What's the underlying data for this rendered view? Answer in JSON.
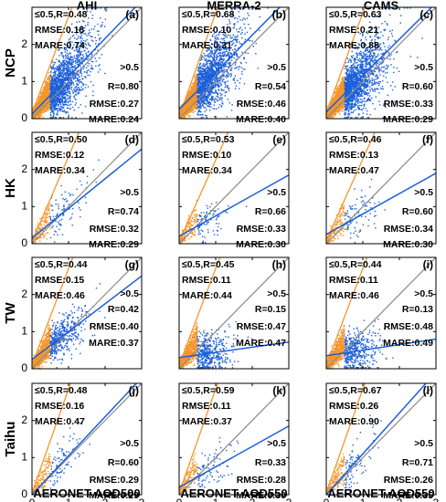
{
  "figure": {
    "column_titles": [
      "AHI",
      "MERRA-2",
      "CAMS"
    ],
    "row_labels": [
      "NCP",
      "HK",
      "TW",
      "Taihu"
    ],
    "xlabels": [
      "AERONET AOD500",
      "AERONET AOD550",
      "AERONET AOD550"
    ],
    "colors": {
      "low_aod": "#f5962a",
      "high_aod": "#1c5fd8",
      "one_to_one": "#8a8a8a",
      "frame": "#000000"
    }
  },
  "chart_data": [
    {
      "type": "scatter",
      "panel_label": "(a)",
      "column": "AHI",
      "row": "NCP",
      "xlabel": "AERONET AOD500",
      "ylabel": "",
      "xlim": [
        0,
        3
      ],
      "ylim": [
        0,
        3
      ],
      "xticks": [
        0,
        1,
        2,
        3
      ],
      "yticks": [
        0,
        1,
        2,
        3
      ],
      "one_to_one": true,
      "low": {
        "threshold": "≤0.5",
        "R": "0.48",
        "RMSE": "0.18",
        "MARE": "0.74",
        "fit_slope": 2.6,
        "fit_intercept": 0.15
      },
      "high": {
        "threshold": ">0.5",
        "R": "0.80",
        "RMSE": "0.27",
        "MARE": "0.24",
        "fit_slope": 1.02,
        "fit_intercept": 0.12
      },
      "density": "heavy"
    },
    {
      "type": "scatter",
      "panel_label": "(b)",
      "column": "MERRA-2",
      "row": "NCP",
      "xlabel": "AERONET AOD550",
      "ylabel": "",
      "xlim": [
        0,
        3
      ],
      "ylim": [
        0,
        3
      ],
      "xticks": [
        0,
        1,
        2,
        3
      ],
      "yticks": [
        0,
        1,
        2,
        3
      ],
      "one_to_one": true,
      "low": {
        "threshold": "≤0.5",
        "R": "0.68",
        "RMSE": "0.10",
        "MARE": "0.31",
        "fit_slope": 2.8,
        "fit_intercept": 0.05
      },
      "high": {
        "threshold": ">0.5",
        "R": "0.54",
        "RMSE": "0.46",
        "MARE": "0.40",
        "fit_slope": 1.0,
        "fit_intercept": 0.25
      },
      "density": "heavy"
    },
    {
      "type": "scatter",
      "panel_label": "(c)",
      "column": "CAMS",
      "row": "NCP",
      "xlabel": "AERONET AOD550",
      "ylabel": "",
      "xlim": [
        0,
        3
      ],
      "ylim": [
        0,
        3
      ],
      "xticks": [
        0,
        1,
        2,
        3
      ],
      "yticks": [
        0,
        1,
        2,
        3
      ],
      "one_to_one": true,
      "low": {
        "threshold": "≤0.5",
        "R": "0.63",
        "RMSE": "0.21",
        "MARE": "0.88",
        "fit_slope": 2.7,
        "fit_intercept": 0.15
      },
      "high": {
        "threshold": ">0.5",
        "R": "0.60",
        "RMSE": "0.33",
        "MARE": "0.29",
        "fit_slope": 0.98,
        "fit_intercept": 0.18
      },
      "density": "heavy"
    },
    {
      "type": "scatter",
      "panel_label": "(d)",
      "column": "AHI",
      "row": "HK",
      "xlabel": "AERONET AOD500",
      "ylabel": "",
      "xlim": [
        0,
        3
      ],
      "ylim": [
        0,
        3
      ],
      "xticks": [
        0,
        1,
        2,
        3
      ],
      "yticks": [
        0,
        1,
        2,
        3
      ],
      "one_to_one": true,
      "low": {
        "threshold": "≤0.5",
        "R": "0.50",
        "RMSE": "0.12",
        "MARE": "0.34",
        "fit_slope": 2.3,
        "fit_intercept": 0.05
      },
      "high": {
        "threshold": ">0.5",
        "R": "0.74",
        "RMSE": "0.32",
        "MARE": "0.29",
        "fit_slope": 0.8,
        "fit_intercept": 0.15
      },
      "density": "light"
    },
    {
      "type": "scatter",
      "panel_label": "(e)",
      "column": "MERRA-2",
      "row": "HK",
      "xlabel": "AERONET AOD550",
      "ylabel": "",
      "xlim": [
        0,
        3
      ],
      "ylim": [
        0,
        3
      ],
      "xticks": [
        0,
        1,
        2,
        3
      ],
      "yticks": [
        0,
        1,
        2,
        3
      ],
      "one_to_one": true,
      "low": {
        "threshold": "≤0.5",
        "R": "0.53",
        "RMSE": "0.10",
        "MARE": "0.34",
        "fit_slope": 2.2,
        "fit_intercept": 0.05
      },
      "high": {
        "threshold": ">0.5",
        "R": "0.66",
        "RMSE": "0.33",
        "MARE": "0.30",
        "fit_slope": 0.55,
        "fit_intercept": 0.2
      },
      "density": "light"
    },
    {
      "type": "scatter",
      "panel_label": "(f)",
      "column": "CAMS",
      "row": "HK",
      "xlabel": "AERONET AOD550",
      "ylabel": "",
      "xlim": [
        0,
        3
      ],
      "ylim": [
        0,
        3
      ],
      "xticks": [
        0,
        1,
        2,
        3
      ],
      "yticks": [
        0,
        1,
        2,
        3
      ],
      "one_to_one": true,
      "low": {
        "threshold": "≤0.5",
        "R": "0.46",
        "RMSE": "0.13",
        "MARE": "0.47",
        "fit_slope": 2.2,
        "fit_intercept": 0.08
      },
      "high": {
        "threshold": ">0.5",
        "R": "0.60",
        "RMSE": "0.34",
        "MARE": "0.30",
        "fit_slope": 0.55,
        "fit_intercept": 0.25
      },
      "density": "light"
    },
    {
      "type": "scatter",
      "panel_label": "(g)",
      "column": "AHI",
      "row": "TW",
      "xlabel": "AERONET AOD500",
      "ylabel": "",
      "xlim": [
        0,
        3
      ],
      "ylim": [
        0,
        3
      ],
      "xticks": [
        0,
        1,
        2,
        3
      ],
      "yticks": [
        0,
        1,
        2,
        3
      ],
      "one_to_one": true,
      "low": {
        "threshold": "≤0.5",
        "R": "0.44",
        "RMSE": "0.15",
        "MARE": "0.46",
        "fit_slope": 2.6,
        "fit_intercept": 0.1
      },
      "high": {
        "threshold": ">0.5",
        "R": "0.42",
        "RMSE": "0.40",
        "MARE": "0.37",
        "fit_slope": 0.75,
        "fit_intercept": 0.25
      },
      "density": "medium"
    },
    {
      "type": "scatter",
      "panel_label": "(h)",
      "column": "MERRA-2",
      "row": "TW",
      "xlabel": "AERONET AOD550",
      "ylabel": "",
      "xlim": [
        0,
        3
      ],
      "ylim": [
        0,
        3
      ],
      "xticks": [
        0,
        1,
        2,
        3
      ],
      "yticks": [
        0,
        1,
        2,
        3
      ],
      "one_to_one": true,
      "low": {
        "threshold": "≤0.5",
        "R": "0.45",
        "RMSE": "0.11",
        "MARE": "0.44",
        "fit_slope": 2.6,
        "fit_intercept": 0.1
      },
      "high": {
        "threshold": ">0.5",
        "R": "0.15",
        "RMSE": "0.47",
        "MARE": "0.47",
        "fit_slope": 0.14,
        "fit_intercept": 0.3
      },
      "density": "medium"
    },
    {
      "type": "scatter",
      "panel_label": "(i)",
      "column": "CAMS",
      "row": "TW",
      "xlabel": "AERONET AOD550",
      "ylabel": "",
      "xlim": [
        0,
        3
      ],
      "ylim": [
        0,
        3
      ],
      "xticks": [
        0,
        1,
        2,
        3
      ],
      "yticks": [
        0,
        1,
        2,
        3
      ],
      "one_to_one": true,
      "low": {
        "threshold": "≤0.5",
        "R": "0.44",
        "RMSE": "0.11",
        "MARE": "0.46",
        "fit_slope": 2.6,
        "fit_intercept": 0.1
      },
      "high": {
        "threshold": ">0.5",
        "R": "0.13",
        "RMSE": "0.48",
        "MARE": "0.49",
        "fit_slope": 0.15,
        "fit_intercept": 0.35
      },
      "density": "medium"
    },
    {
      "type": "scatter",
      "panel_label": "(j)",
      "column": "AHI",
      "row": "Taihu",
      "xlabel": "AERONET AOD500",
      "ylabel": "",
      "xlim": [
        0,
        3
      ],
      "ylim": [
        0,
        3
      ],
      "xticks": [
        0,
        1,
        2,
        3
      ],
      "yticks": [
        0,
        1,
        2,
        3
      ],
      "one_to_one": true,
      "low": {
        "threshold": "≤0.5",
        "R": "0.48",
        "RMSE": "0.16",
        "MARE": "0.47",
        "fit_slope": 2.8,
        "fit_intercept": 0.05
      },
      "high": {
        "threshold": ">0.5",
        "R": "0.60",
        "RMSE": "0.29",
        "MARE": "0.29",
        "fit_slope": 1.05,
        "fit_intercept": 0.0
      },
      "density": "light"
    },
    {
      "type": "scatter",
      "panel_label": "(k)",
      "column": "MERRA-2",
      "row": "Taihu",
      "xlabel": "AERONET AOD550",
      "ylabel": "",
      "xlim": [
        0,
        3
      ],
      "ylim": [
        0,
        3
      ],
      "xticks": [
        0,
        1,
        2,
        3
      ],
      "yticks": [
        0,
        1,
        2,
        3
      ],
      "one_to_one": true,
      "low": {
        "threshold": "≤0.5",
        "R": "0.59",
        "RMSE": "0.11",
        "MARE": "0.37",
        "fit_slope": 2.8,
        "fit_intercept": 0.05
      },
      "high": {
        "threshold": ">0.5",
        "R": "0.33",
        "RMSE": "0.28",
        "MARE": "0.30",
        "fit_slope": 0.55,
        "fit_intercept": 0.2
      },
      "density": "light"
    },
    {
      "type": "scatter",
      "panel_label": "(l)",
      "column": "CAMS",
      "row": "Taihu",
      "xlabel": "AERONET AOD550",
      "ylabel": "",
      "xlim": [
        0,
        3
      ],
      "ylim": [
        0,
        3
      ],
      "xticks": [
        0,
        1,
        2,
        3
      ],
      "yticks": [
        0,
        1,
        2,
        3
      ],
      "one_to_one": true,
      "low": {
        "threshold": "≤0.5",
        "R": "0.67",
        "RMSE": "0.26",
        "MARE": "0.90",
        "fit_slope": 2.8,
        "fit_intercept": 0.05
      },
      "high": {
        "threshold": ">0.5",
        "R": "0.71",
        "RMSE": "0.26",
        "MARE": "0.35",
        "fit_slope": 1.1,
        "fit_intercept": 0.0
      },
      "density": "light"
    }
  ]
}
